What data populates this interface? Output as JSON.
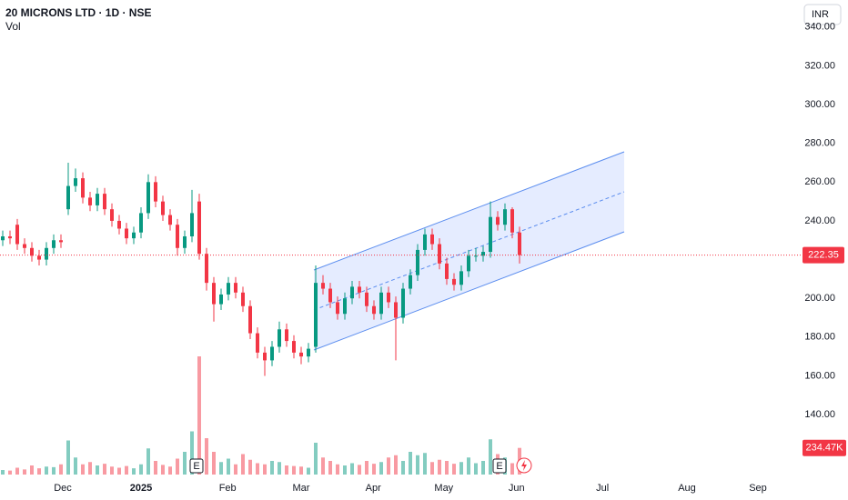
{
  "chart_data": {
    "type": "candlestick",
    "title": "20 MICRONS LTD · 1D · NSE",
    "volume_title": "Vol",
    "currency": "INR",
    "markers": [
      "E",
      "E"
    ],
    "up_color": "#089981",
    "down_color": "#f23645",
    "open": [
      230,
      232,
      238,
      228,
      226,
      222,
      220,
      226,
      230,
      246,
      258,
      262,
      252,
      248,
      254,
      246,
      240,
      236,
      231,
      234,
      244,
      260,
      250,
      243,
      238,
      226,
      232,
      250,
      223,
      208,
      197,
      202,
      208,
      203,
      196,
      182,
      172,
      168,
      175,
      184,
      178,
      172,
      170,
      175,
      208,
      205,
      198,
      192,
      200,
      206,
      203,
      196,
      192,
      203,
      198,
      190,
      205,
      212,
      225,
      233,
      228,
      218,
      210,
      207,
      214,
      222,
      222,
      224,
      242,
      238,
      246,
      234
    ],
    "high": [
      235,
      235,
      241,
      231,
      229,
      225,
      229,
      233,
      233,
      270,
      267,
      265,
      255,
      257,
      257,
      249,
      243,
      239,
      237,
      247,
      264,
      263,
      253,
      246,
      241,
      235,
      256,
      254,
      226,
      211,
      205,
      211,
      211,
      206,
      199,
      185,
      175,
      178,
      188,
      187,
      181,
      175,
      177,
      217,
      212,
      208,
      201,
      203,
      209,
      209,
      206,
      199,
      206,
      206,
      201,
      208,
      215,
      228,
      236,
      236,
      231,
      221,
      213,
      217,
      225,
      226,
      227,
      250,
      245,
      249,
      247,
      237
    ],
    "low": [
      227,
      228,
      225,
      223,
      219,
      217,
      217,
      223,
      226,
      243,
      255,
      249,
      245,
      245,
      243,
      237,
      233,
      228,
      228,
      231,
      241,
      247,
      240,
      235,
      222,
      223,
      229,
      220,
      204,
      188,
      194,
      199,
      200,
      193,
      179,
      169,
      160,
      165,
      172,
      175,
      169,
      166,
      167,
      172,
      202,
      195,
      189,
      189,
      197,
      200,
      193,
      189,
      189,
      195,
      168,
      187,
      202,
      209,
      222,
      225,
      215,
      207,
      204,
      204,
      211,
      219,
      219,
      221,
      235,
      235,
      231,
      218
    ],
    "close": [
      232,
      231,
      228,
      226,
      222,
      220,
      226,
      230,
      229,
      258,
      262,
      252,
      248,
      254,
      246,
      240,
      236,
      231,
      234,
      244,
      260,
      250,
      243,
      238,
      226,
      232,
      244,
      223,
      208,
      197,
      202,
      208,
      203,
      196,
      182,
      172,
      168,
      175,
      184,
      178,
      172,
      170,
      174,
      208,
      205,
      198,
      192,
      200,
      206,
      203,
      196,
      192,
      203,
      198,
      190,
      205,
      212,
      225,
      233,
      228,
      218,
      210,
      207,
      214,
      222,
      222,
      224,
      242,
      238,
      246,
      234,
      222.35
    ],
    "volume": [
      40,
      35,
      60,
      45,
      80,
      55,
      70,
      65,
      90,
      300,
      150,
      90,
      110,
      80,
      95,
      70,
      60,
      75,
      55,
      90,
      230,
      120,
      85,
      70,
      140,
      200,
      380,
      1040,
      320,
      200,
      110,
      140,
      90,
      180,
      130,
      100,
      90,
      120,
      110,
      80,
      75,
      70,
      60,
      280,
      150,
      120,
      90,
      80,
      100,
      85,
      120,
      95,
      110,
      150,
      170,
      120,
      200,
      170,
      190,
      110,
      130,
      120,
      95,
      110,
      150,
      100,
      120,
      310,
      180,
      150,
      100,
      234.47
    ],
    "last_volume_label": "234.47K",
    "xlim": [
      -0.375,
      109.625
    ],
    "xticks": [
      {
        "value": 8.25,
        "label": "Dec"
      },
      {
        "value": 19,
        "label": "2025"
      },
      {
        "value": 30.9,
        "label": "Feb"
      },
      {
        "value": 41,
        "label": "Mar"
      },
      {
        "value": 50.9,
        "label": "Apr"
      },
      {
        "value": 60.6,
        "label": "May"
      },
      {
        "value": 70.6,
        "label": "Jun"
      },
      {
        "value": 82.4,
        "label": "Jul"
      },
      {
        "value": 94,
        "label": "Aug"
      },
      {
        "value": 103.75,
        "label": "Sep"
      }
    ],
    "ylim": [
      110,
      354
    ],
    "yticks": [
      {
        "value": 140,
        "label": "140.00"
      },
      {
        "value": 160,
        "label": "160.00"
      },
      {
        "value": 180,
        "label": "180.00"
      },
      {
        "value": 200,
        "label": "200.00"
      },
      {
        "value": 220,
        "label": "220.00"
      },
      {
        "value": 240,
        "label": "240.00"
      },
      {
        "value": 260,
        "label": "260.00"
      },
      {
        "value": 280,
        "label": "280.00"
      },
      {
        "value": 300,
        "label": "300.00"
      },
      {
        "value": 320,
        "label": "320.00"
      },
      {
        "value": 340,
        "label": "340.00"
      }
    ]
  }
}
